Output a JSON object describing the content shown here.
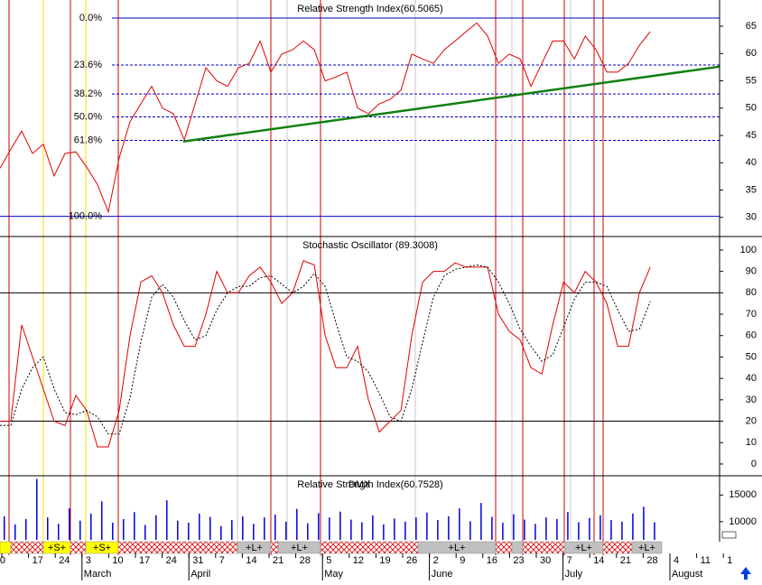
{
  "chart_data": [
    {
      "type": "line",
      "title": "Relative Strength Index(60.5065)",
      "x": [
        0,
        1,
        2,
        3,
        4,
        5,
        6,
        7,
        8,
        9,
        10,
        11,
        12,
        13,
        14,
        15,
        16,
        17,
        18,
        19,
        20,
        21,
        22,
        23,
        24,
        25,
        26,
        27,
        28,
        29,
        30,
        31,
        32,
        33,
        34,
        35,
        36,
        37,
        38,
        39,
        40,
        41,
        42,
        43,
        44,
        45,
        46,
        47,
        48,
        49,
        50,
        51,
        52,
        53,
        54,
        55,
        56,
        57,
        58,
        59,
        60
      ],
      "series": [
        {
          "color": "#e00000",
          "values": [
            39,
            42.5,
            45.8,
            41.7,
            43.4,
            37.6,
            41.7,
            42,
            39.2,
            36,
            31,
            40.9,
            47.5,
            50.8,
            54,
            50,
            49,
            44.2,
            50.8,
            57.4,
            55,
            54,
            57.4,
            58.2,
            62.3,
            56.6,
            59.9,
            60.7,
            62.3,
            60.7,
            55,
            55.7,
            56.6,
            50,
            49,
            50.8,
            51.6,
            53.3,
            59.9,
            59,
            58.2,
            60.7,
            62.3,
            64,
            65.6,
            63.2,
            58.2,
            59.9,
            59,
            54,
            58.2,
            62.3,
            62.3,
            59,
            63.2,
            60.7,
            56.6,
            56.6,
            58.2,
            61.5,
            64
          ]
        }
      ],
      "xlim": [
        0,
        66.4
      ],
      "ylim": [
        26.5,
        69.8
      ],
      "yticks": [
        30,
        35,
        40,
        45,
        50,
        55,
        60,
        65
      ],
      "fib_levels": [
        {
          "value": 66.5,
          "label": "0.0%"
        },
        {
          "value": 57.9,
          "label": "23.6%"
        },
        {
          "value": 52.6,
          "label": "38.2%"
        },
        {
          "value": 48.4,
          "label": "50.0%"
        },
        {
          "value": 44.1,
          "label": "61.8%"
        },
        {
          "value": 30.2,
          "label": "100.0%"
        }
      ],
      "fib_color": "#0000c0",
      "trendline": {
        "color": "#108010",
        "x": [
          16.9,
          66.4
        ],
        "y": [
          43.9,
          57.6
        ]
      }
    },
    {
      "type": "line",
      "title": "Stochastic Oscillator (89.3008)",
      "x": [
        0,
        1,
        2,
        3,
        4,
        5,
        6,
        7,
        8,
        9,
        10,
        11,
        12,
        13,
        14,
        15,
        16,
        17,
        18,
        19,
        20,
        21,
        22,
        23,
        24,
        25,
        26,
        27,
        28,
        29,
        30,
        31,
        32,
        33,
        34,
        35,
        36,
        37,
        38,
        39,
        40,
        41,
        42,
        43,
        44,
        45,
        46,
        47,
        48,
        49,
        50,
        51,
        52,
        53,
        54,
        55,
        56,
        57,
        58,
        59,
        60
      ],
      "series": [
        {
          "color": "#e00000",
          "dashed": false,
          "values": [
            20,
            20,
            65,
            50,
            35,
            20,
            18,
            32,
            25,
            8,
            8,
            25,
            60,
            85,
            88,
            80,
            65,
            55,
            55,
            70,
            90,
            80,
            80,
            88,
            92,
            85,
            75,
            80,
            95,
            93,
            60,
            45,
            45,
            55,
            30,
            15,
            20,
            25,
            60,
            85,
            90,
            90,
            94,
            92,
            92,
            92,
            70,
            62,
            58,
            45,
            42,
            65,
            85,
            80,
            90,
            85,
            75,
            55,
            55,
            80,
            92
          ]
        },
        {
          "color": "#000000",
          "dashed": true,
          "values": [
            18,
            18,
            35,
            45,
            50,
            35,
            24,
            23,
            25,
            22,
            14,
            14,
            31,
            57,
            78,
            84,
            78,
            67,
            58,
            60,
            72,
            80,
            83,
            83,
            87,
            88,
            84,
            80,
            83,
            89,
            83,
            66,
            50,
            48,
            43,
            33,
            22,
            20,
            35,
            57,
            78,
            88,
            91,
            92,
            93,
            92,
            85,
            75,
            63,
            55,
            48,
            51,
            64,
            77,
            85,
            85,
            83,
            72,
            62,
            63,
            76
          ]
        }
      ],
      "xlim": [
        0,
        66.4
      ],
      "ylim": [
        -5.5,
        106.3
      ],
      "yticks": [
        0,
        10,
        20,
        30,
        40,
        50,
        60,
        70,
        80,
        90,
        100
      ],
      "hlines": [
        20,
        80
      ]
    },
    {
      "type": "bar",
      "title": "Relative Strength Index(60.7528)",
      "overlay_title": "DMX",
      "x": [
        0,
        1,
        2,
        3,
        4,
        5,
        6,
        7,
        8,
        9,
        10,
        11,
        12,
        13,
        14,
        15,
        16,
        17,
        18,
        19,
        20,
        21,
        22,
        23,
        24,
        25,
        26,
        27,
        28,
        29,
        30,
        31,
        32,
        33,
        34,
        35,
        36,
        37,
        38,
        39,
        40,
        41,
        42,
        43,
        44,
        45,
        46,
        47,
        48,
        49,
        50,
        51,
        52,
        53,
        54,
        55,
        56,
        57,
        58,
        59,
        60
      ],
      "values": [
        11000,
        9500,
        10500,
        18000,
        10800,
        9600,
        12500,
        10200,
        11500,
        13800,
        9800,
        10500,
        11800,
        9400,
        11200,
        14000,
        10200,
        9800,
        11500,
        10900,
        9200,
        10300,
        11000,
        9600,
        10800,
        11300,
        10000,
        12400,
        9700,
        11600,
        10800,
        11900,
        10400,
        9900,
        11200,
        9500,
        10600,
        10000,
        10800,
        11700,
        10300,
        11000,
        12500,
        10100,
        13500,
        10900,
        9800,
        11400,
        10400,
        9600,
        10800,
        10500,
        11800,
        9900,
        10700,
        11200,
        10300,
        10000,
        11500,
        12800,
        9900
      ],
      "color": "#0000e0",
      "xlim": [
        0,
        66.4
      ],
      "ylim": [
        6600,
        18600
      ],
      "yticks": [
        10000,
        15000
      ],
      "signals": [
        "+S+",
        "+S+",
        "+L+",
        "+L+",
        "+L+",
        "+L+",
        "+L+"
      ],
      "week_labels": [
        "0",
        "17",
        "24",
        "3",
        "10",
        "17",
        "24",
        "31",
        "7",
        "14",
        "21",
        "28",
        "5",
        "12",
        "19",
        "26",
        "2",
        "9",
        "16",
        "23",
        "30",
        "7",
        "14",
        "21",
        "28",
        "4",
        "11",
        "1"
      ],
      "month_labels": [
        "March",
        "April",
        "May",
        "June",
        "July",
        "August"
      ]
    }
  ]
}
